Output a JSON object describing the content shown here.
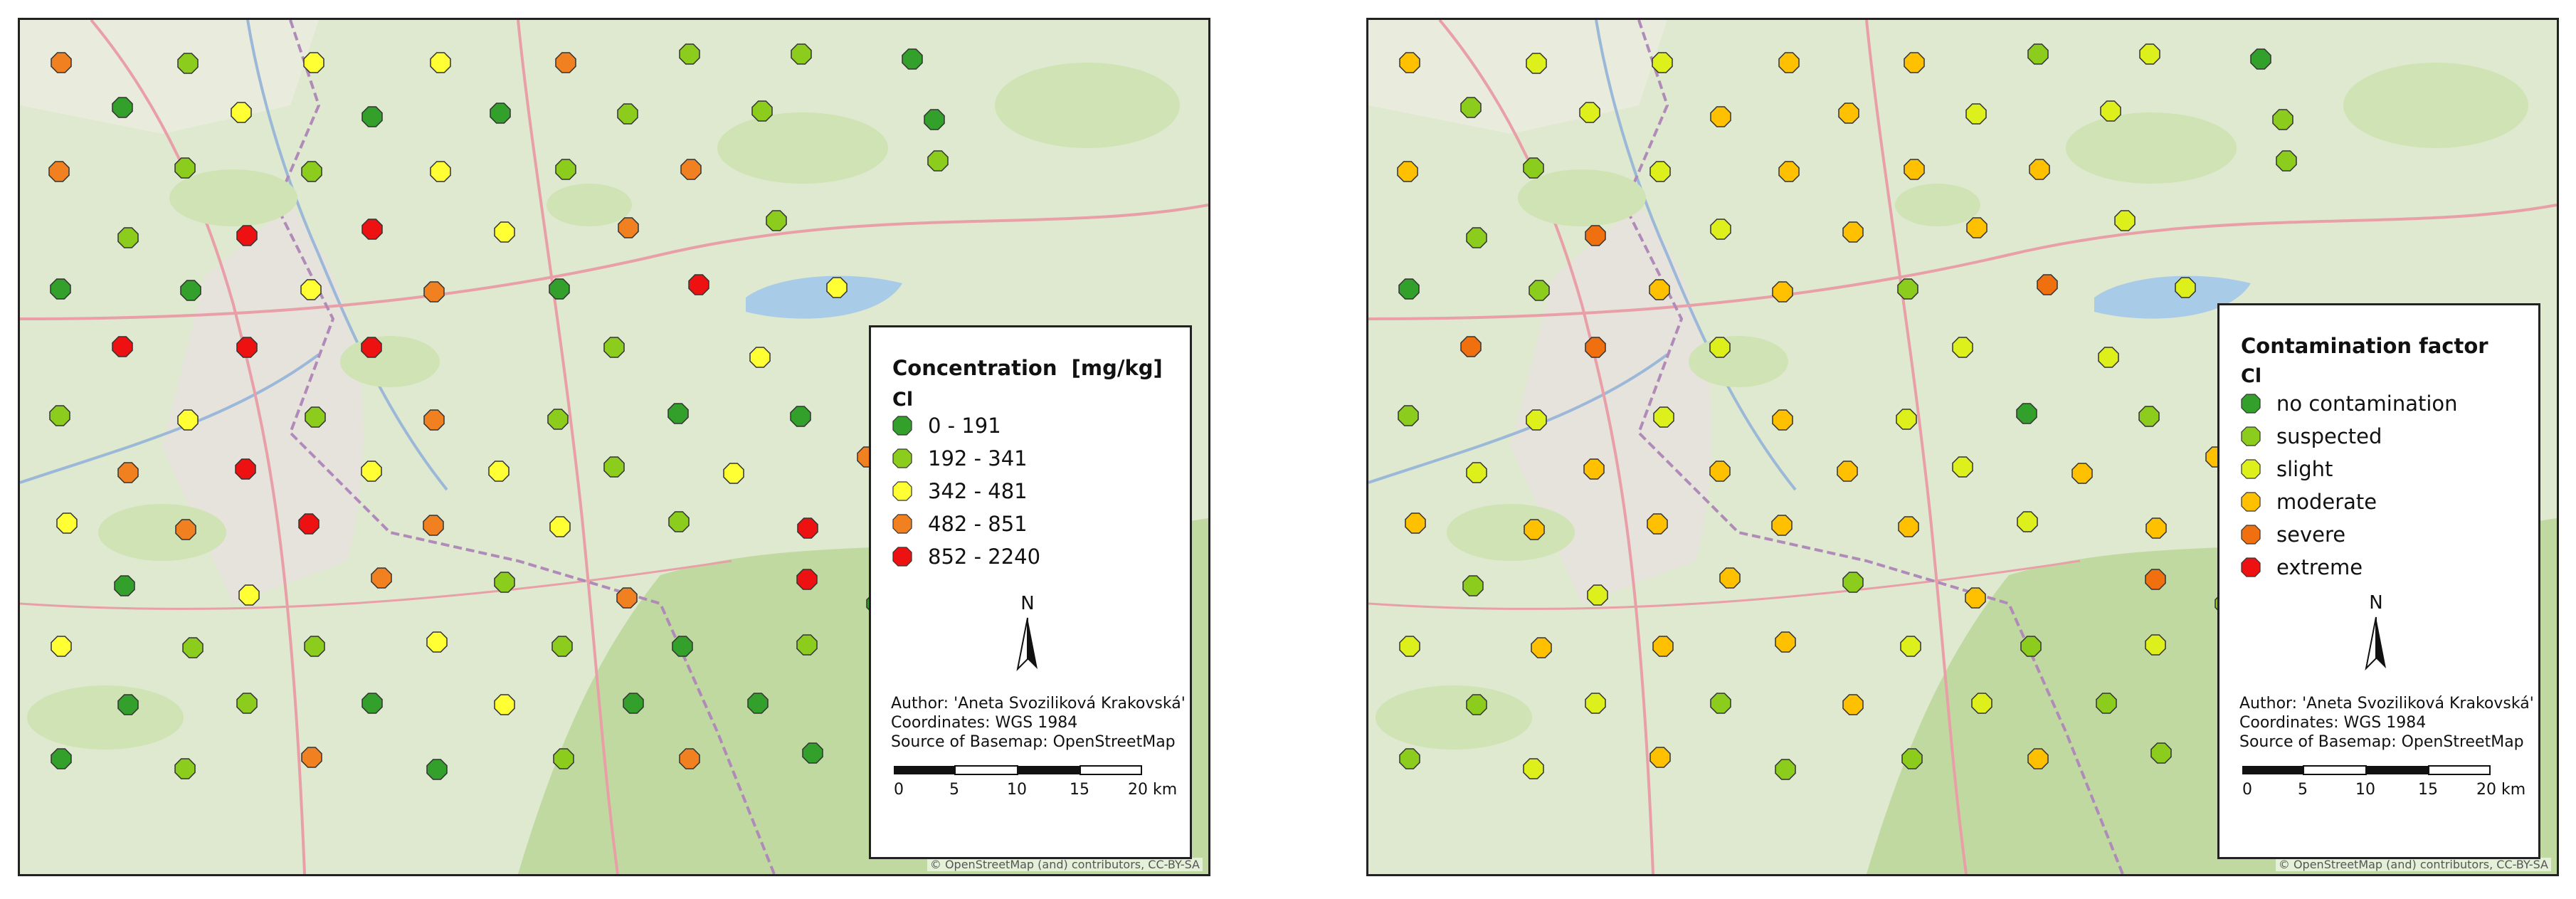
{
  "maps": [
    {
      "id": "concentration",
      "legend": {
        "title": "Concentration  [mg/kg]",
        "subtitle": "Cl",
        "items": [
          {
            "label": "0 - 191",
            "color": "#33a02c"
          },
          {
            "label": "192 - 341",
            "color": "#8ccc1c"
          },
          {
            "label": "342 - 481",
            "color": "#ffff33"
          },
          {
            "label": "482 - 851",
            "color": "#f08020"
          },
          {
            "label": "852 - 2240",
            "color": "#ee1111"
          }
        ]
      },
      "north_label": "N",
      "credits": [
        "Author: 'Aneta Svoziliková Krakovská'",
        "Coordinates: WGS 1984",
        "Source of Basemap: OpenStreetMap"
      ],
      "scale_labels": [
        "0",
        "5",
        "10",
        "15",
        "20 km"
      ],
      "osm_credit": "© OpenStreetMap (and) contributors, CC-BY-SA",
      "point_classes": [
        4,
        2,
        3,
        3,
        4,
        2,
        2,
        1,
        1,
        3,
        1,
        1,
        2,
        2,
        1,
        4,
        2,
        2,
        3,
        2,
        4,
        2,
        2,
        5,
        5,
        3,
        4,
        2,
        1,
        1,
        3,
        4,
        1,
        5,
        3,
        5,
        5,
        5,
        2,
        3,
        2,
        2,
        3,
        2,
        4,
        2,
        1,
        1,
        4,
        5,
        3,
        3,
        2,
        3,
        4,
        3,
        4,
        5,
        4,
        3,
        2,
        5,
        2,
        1,
        3,
        4,
        2,
        4,
        5,
        1,
        3,
        2,
        2,
        3,
        2,
        1,
        2,
        4,
        1,
        2,
        1,
        3,
        1,
        1,
        3,
        1,
        2,
        4,
        1,
        2,
        4,
        1
      ]
    },
    {
      "id": "contamination",
      "legend": {
        "title": "Contamination factor",
        "subtitle": "Cl",
        "items": [
          {
            "label": "no contamination",
            "color": "#33a02c"
          },
          {
            "label": "suspected",
            "color": "#8ccc1c"
          },
          {
            "label": "slight",
            "color": "#ddf01c"
          },
          {
            "label": "moderate",
            "color": "#ffc000"
          },
          {
            "label": "severe",
            "color": "#f07010"
          },
          {
            "label": "extreme",
            "color": "#ee1111"
          }
        ]
      },
      "north_label": "N",
      "credits": [
        "Author: 'Aneta Svoziliková Krakovská'",
        "Coordinates: WGS 1984",
        "Source of Basemap: OpenStreetMap"
      ],
      "scale_labels": [
        "0",
        "5",
        "10",
        "15",
        "20 km"
      ],
      "osm_credit": "© OpenStreetMap (and) contributors, CC-BY-SA",
      "point_classes": [
        4,
        3,
        3,
        4,
        4,
        2,
        3,
        1,
        2,
        3,
        4,
        4,
        3,
        3,
        2,
        4,
        2,
        3,
        4,
        4,
        4,
        2,
        2,
        5,
        3,
        4,
        4,
        3,
        1,
        2,
        4,
        4,
        2,
        5,
        3,
        5,
        5,
        3,
        3,
        3,
        2,
        2,
        3,
        3,
        4,
        3,
        1,
        2,
        3,
        4,
        4,
        4,
        3,
        4,
        4,
        4,
        4,
        4,
        4,
        4,
        3,
        4,
        3,
        2,
        3,
        4,
        2,
        4,
        5,
        2,
        3,
        4,
        4,
        4,
        3,
        2,
        3,
        4,
        2,
        3,
        2,
        4,
        3,
        2,
        4,
        2,
        3,
        4,
        2,
        2,
        4,
        2
      ]
    }
  ]
}
